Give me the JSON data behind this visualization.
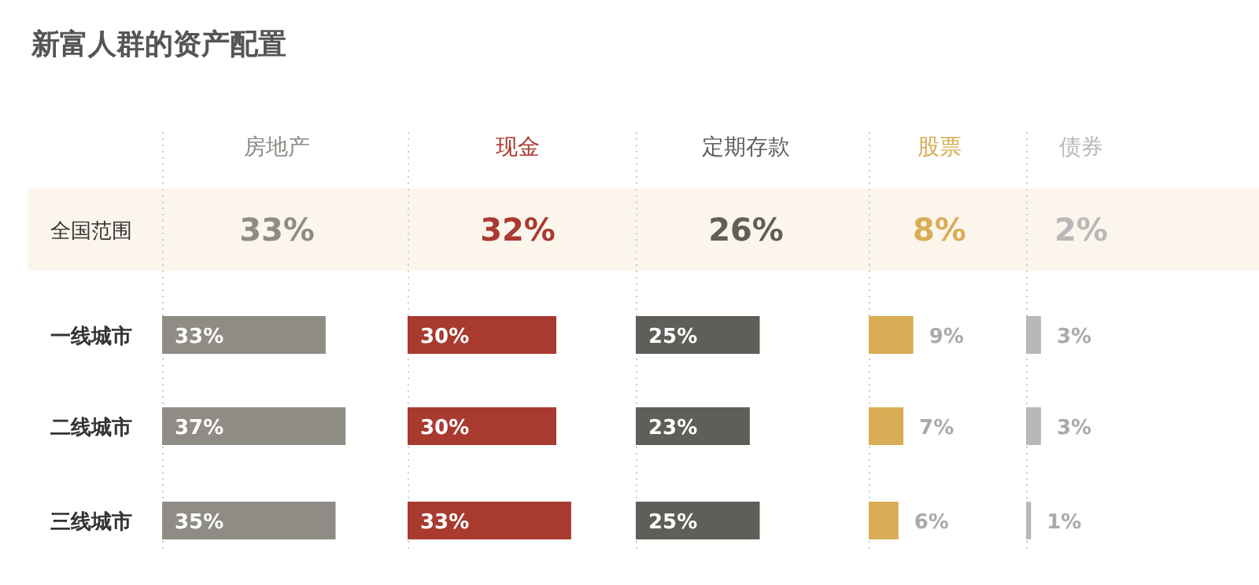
{
  "chart_data": [
    {
      "type": "bar",
      "orientation": "horizontal",
      "title": "新富人群的资产配置",
      "categories": [
        "全国范围",
        "一线城市",
        "二线城市",
        "三线城市"
      ],
      "bands": [
        {
          "axis": "y",
          "from": "全国范围",
          "to": "全国范围",
          "color": "#fcf5ec"
        }
      ],
      "series": [
        {
          "name": "房地产",
          "color": "#8f8b85",
          "values": [
            null,
            33,
            37,
            35
          ],
          "value_labels": [
            "33%",
            "33%",
            "37%",
            "35%"
          ]
        }
      ]
    },
    {
      "type": "bar",
      "orientation": "horizontal",
      "tick_labels": false,
      "categories": [
        "全国范围",
        "一线城市",
        "二线城市",
        "三线城市"
      ],
      "bands": [
        {
          "axis": "y",
          "from": "全国范围",
          "to": "全国范围",
          "color": "#fcf5ec"
        }
      ],
      "series": [
        {
          "name": "现金",
          "color": "#a93a30",
          "values": [
            null,
            30,
            30,
            33
          ],
          "value_labels": [
            "32%",
            "30%",
            "30%",
            "33%"
          ]
        }
      ]
    },
    {
      "type": "bar",
      "orientation": "horizontal",
      "tick_labels": false,
      "categories": [
        "全国范围",
        "一线城市",
        "二线城市",
        "三线城市"
      ],
      "bands": [
        {
          "axis": "y",
          "from": "全国范围",
          "to": "全国范围",
          "color": "#fcf5ec"
        }
      ],
      "series": [
        {
          "name": "定期存款",
          "color": "#5f5e58",
          "values": [
            null,
            25,
            23,
            25
          ],
          "value_labels": [
            "26%",
            "25%",
            "23%",
            "25%"
          ]
        }
      ]
    },
    {
      "type": "bar",
      "orientation": "horizontal",
      "tick_labels": false,
      "categories": [
        "全国范围",
        "一线城市",
        "二线城市",
        "三线城市"
      ],
      "bands": [
        {
          "axis": "y",
          "from": "全国范围",
          "to": "全国范围",
          "color": "#fcf5ec"
        }
      ],
      "series": [
        {
          "name": "股票",
          "color": "#d9ad56",
          "values": [
            null,
            9,
            7,
            6
          ],
          "value_labels": [
            "8%",
            "9%",
            "7%",
            "6%"
          ]
        }
      ]
    },
    {
      "type": "bar",
      "orientation": "horizontal",
      "tick_labels": false,
      "categories": [
        "全国范围",
        "一线城市",
        "二线城市",
        "三线城市"
      ],
      "bands": [
        {
          "axis": "y",
          "from": "全国范围",
          "to": "全国范围",
          "color": "#fcf5ec"
        }
      ],
      "series": [
        {
          "name": "债券",
          "color": "#b8b8b8",
          "values": [
            null,
            3,
            3,
            1
          ],
          "value_labels": [
            "2%",
            "3%",
            "3%",
            "1%"
          ]
        }
      ]
    }
  ]
}
